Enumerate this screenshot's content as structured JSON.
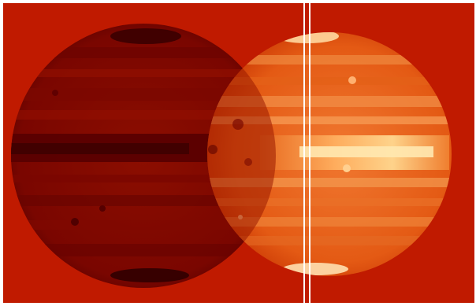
{
  "image": {
    "description_free": true,
    "colors": {
      "background": "#c01a00",
      "left_planet_dark": "#8a0a00",
      "left_planet_band": "#5a0000",
      "right_planet_base": "#e85a10",
      "right_planet_bright": "#ffb070",
      "right_planet_core": "#ffe0a0",
      "divider": "#ffffff"
    }
  }
}
